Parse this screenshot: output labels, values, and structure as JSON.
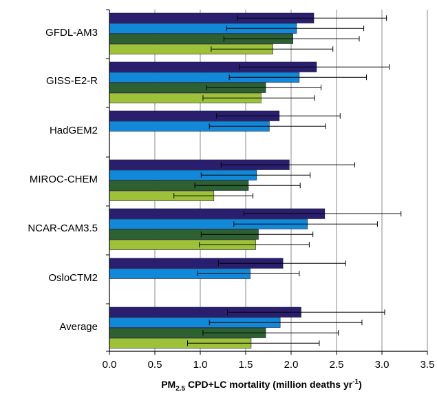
{
  "chart_data": {
    "type": "bar",
    "orientation": "horizontal",
    "xlabel_main": "PM",
    "xlabel_sub": "2.5",
    "xlabel_rest": " CPD+LC mortality  (million  deaths yr",
    "xlabel_sup": "-1",
    "xlabel_close": ")",
    "xlim": [
      0,
      3.5
    ],
    "xticks": [
      "0.0",
      "0.5",
      "1.0",
      "1.5",
      "2.0",
      "2.5",
      "3.0",
      "3.5"
    ],
    "grid": "vertical",
    "categories": [
      "GFDL-AM3",
      "GISS-E2-R",
      "HadGEM2",
      "MIROC-CHEM",
      "NCAR-CAM3.5",
      "OsloCTM2",
      "Average"
    ],
    "series": [
      {
        "color": "#2a1f6e",
        "values": [
          2.25,
          2.28,
          1.87,
          1.98,
          2.37,
          1.91,
          2.11
        ],
        "err_low": [
          1.41,
          1.43,
          1.18,
          1.23,
          1.48,
          1.2,
          1.3
        ],
        "err_high": [
          3.05,
          3.08,
          2.54,
          2.7,
          3.21,
          2.6,
          3.03
        ]
      },
      {
        "color": "#1289d8",
        "values": [
          2.06,
          2.09,
          1.76,
          1.62,
          2.18,
          1.55,
          1.88
        ],
        "err_low": [
          1.29,
          1.32,
          1.1,
          1.01,
          1.37,
          0.97,
          1.1
        ],
        "err_high": [
          2.8,
          2.83,
          2.38,
          2.21,
          2.95,
          2.09,
          2.78
        ]
      },
      {
        "color": "#2d6132",
        "values": [
          2.02,
          1.72,
          null,
          1.53,
          1.64,
          null,
          1.72
        ],
        "err_low": [
          1.26,
          1.07,
          null,
          0.94,
          1.01,
          null,
          1.03
        ],
        "err_high": [
          2.75,
          2.33,
          null,
          2.1,
          2.24,
          null,
          2.52
        ]
      },
      {
        "color": "#9dc138",
        "values": [
          1.8,
          1.67,
          null,
          1.15,
          1.61,
          null,
          1.56
        ],
        "err_low": [
          1.12,
          1.03,
          null,
          0.71,
          0.99,
          null,
          0.86
        ],
        "err_high": [
          2.46,
          2.26,
          null,
          1.58,
          2.2,
          null,
          2.31
        ]
      }
    ]
  }
}
